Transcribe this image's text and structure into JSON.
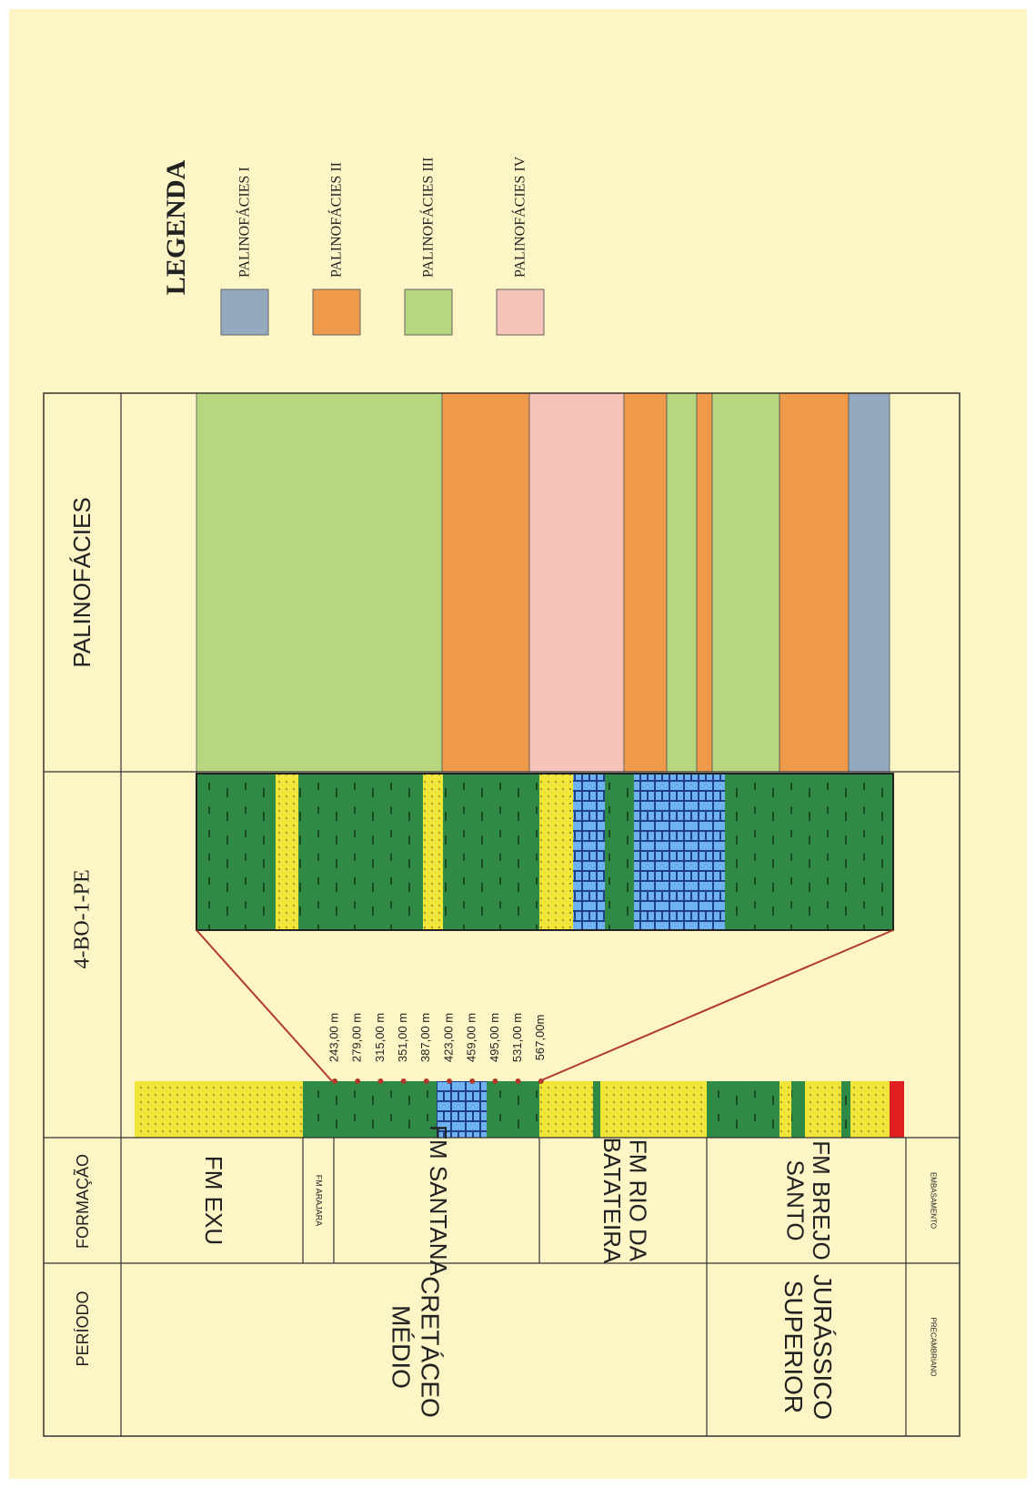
{
  "legend": {
    "title": "LEGENDA",
    "items": [
      {
        "label": "PALINOFÁCIES I",
        "color": "#93a9bf"
      },
      {
        "label": "PALINOFÁCIES II",
        "color": "#ef9a4a"
      },
      {
        "label": "PALINOFÁCIES III",
        "color": "#b6d77f"
      },
      {
        "label": "PALINOFÁCIES IV",
        "color": "#f5c3b8"
      }
    ]
  },
  "headers": {
    "palinofacies": "PALINOFÁCIES",
    "well": "4-BO-1-PE",
    "formacao": "FORMAÇÃO",
    "periodo": "PERÍODO"
  },
  "formations": [
    [
      "FM EXU"
    ],
    [
      "FM ARAJARA"
    ],
    [
      "FM SANTANA"
    ],
    [
      "FM RIO DA",
      "BATATEIRA"
    ],
    [
      "FM BREJO",
      "SANTO"
    ],
    [
      "EMBASAMENTO"
    ]
  ],
  "periods": [
    [
      "CRETÁCEO",
      "MÉDIO"
    ],
    [
      "JURÁSSICO",
      "SUPERIOR"
    ],
    [
      "PRECAMBRIANO"
    ]
  ],
  "depths": [
    "243,00 m",
    "279,00 m",
    "315,00 m",
    "351,00 m",
    "387,00 m",
    "423,00 m",
    "459,00 m",
    "495,00 m",
    "531,00 m",
    "567,00m"
  ]
}
